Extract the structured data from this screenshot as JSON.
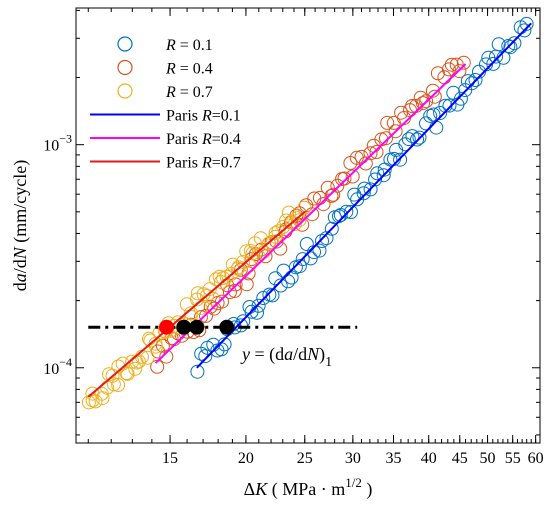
{
  "chart_data": {
    "type": "scatter",
    "xlabel": "ΔK ( MPa · m^1/2 )",
    "ylabel": "da/dN (mm/cycle)",
    "x_scale": "log",
    "y_scale": "log",
    "xlim": [
      10.5,
      61
    ],
    "ylim": [
      4.6e-05,
      0.0041
    ],
    "grid": false,
    "legend_position": "top-left",
    "x_ticks": [
      15,
      20,
      25,
      30,
      35,
      40,
      45,
      50,
      55,
      60
    ],
    "x_tick_labels": [
      "15",
      "20",
      "25",
      "30",
      "35",
      "40",
      "45",
      "50",
      "55",
      "60"
    ],
    "y_ticks": [
      0.0001,
      0.001
    ],
    "y_tick_labels": [
      "10^-4",
      "10^-3"
    ],
    "series": [
      {
        "name": "R = 0.1",
        "kind": "markers",
        "color": "#0072BD",
        "x_range": [
          16.6,
          58.2
        ],
        "y_range": [
          0.0001,
          0.0035
        ],
        "n_points": 85
      },
      {
        "name": "R = 0.4",
        "kind": "markers",
        "color": "#D95319",
        "x_range": [
          14.2,
          45.5
        ],
        "y_range": [
          0.000105,
          0.0024
        ],
        "n_points": 80
      },
      {
        "name": "R = 0.7",
        "kind": "markers",
        "color": "#EDB120",
        "x_range": [
          11.0,
          24.8
        ],
        "y_range": [
          7e-05,
          0.00052
        ],
        "n_points": 75
      },
      {
        "name": "Paris R=0.1",
        "kind": "line",
        "color": "#0000FF",
        "x": [
          16.6,
          59.0
        ],
        "y": [
          0.0001,
          0.0035
        ]
      },
      {
        "name": "Paris R=0.4",
        "kind": "line",
        "color": "#FF00FF",
        "x": [
          14.2,
          46.0
        ],
        "y": [
          0.000105,
          0.0023
        ]
      },
      {
        "name": "Paris R=0.7",
        "kind": "line",
        "color": "#E31A1C",
        "x": [
          11.0,
          25.0
        ],
        "y": [
          7.4e-05,
          0.0005
        ]
      }
    ],
    "threshold": {
      "label_y": "y",
      "label_expr": "(da/dN)",
      "label_sub": "1",
      "value": 0.000152,
      "x_range": [
        11.0,
        30.5
      ],
      "color": "#000000",
      "points": [
        {
          "x": 14.8,
          "color": "#FF0000"
        },
        {
          "x": 15.8,
          "color": "#000000"
        },
        {
          "x": 16.6,
          "color": "#000000"
        },
        {
          "x": 18.6,
          "color": "#000000"
        }
      ]
    }
  }
}
